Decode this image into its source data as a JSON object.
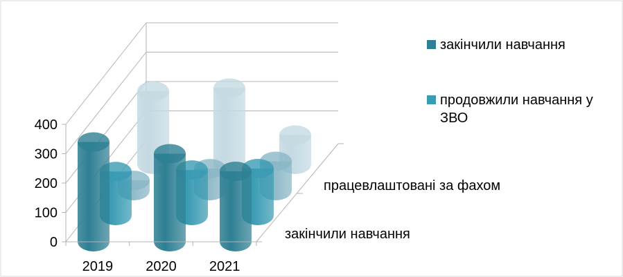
{
  "chart_data": {
    "type": "bar",
    "style": "3d-cylinder",
    "categories": [
      "2019",
      "2020",
      "2021"
    ],
    "depth_labels": [
      "закінчили навчання",
      "працевлаштовані за фахом"
    ],
    "series": [
      {
        "name": "закінчили навчання",
        "values": [
          340,
          300,
          240
        ],
        "color": "#2e7f93"
      },
      {
        "name": "продовжили навчання у ЗВО",
        "values": [
          150,
          155,
          160
        ],
        "color": "#3a9bb3"
      },
      {
        "name": "",
        "values": [
          35,
          75,
          100
        ],
        "color": "#8ab7c6"
      },
      {
        "name": "",
        "values": [
          250,
          260,
          100
        ],
        "color": "#c4d9e2"
      }
    ],
    "yticks": [
      "0",
      "100",
      "200",
      "300",
      "400"
    ],
    "ylim": [
      0,
      400
    ],
    "grid": true,
    "legend_position": "right"
  }
}
